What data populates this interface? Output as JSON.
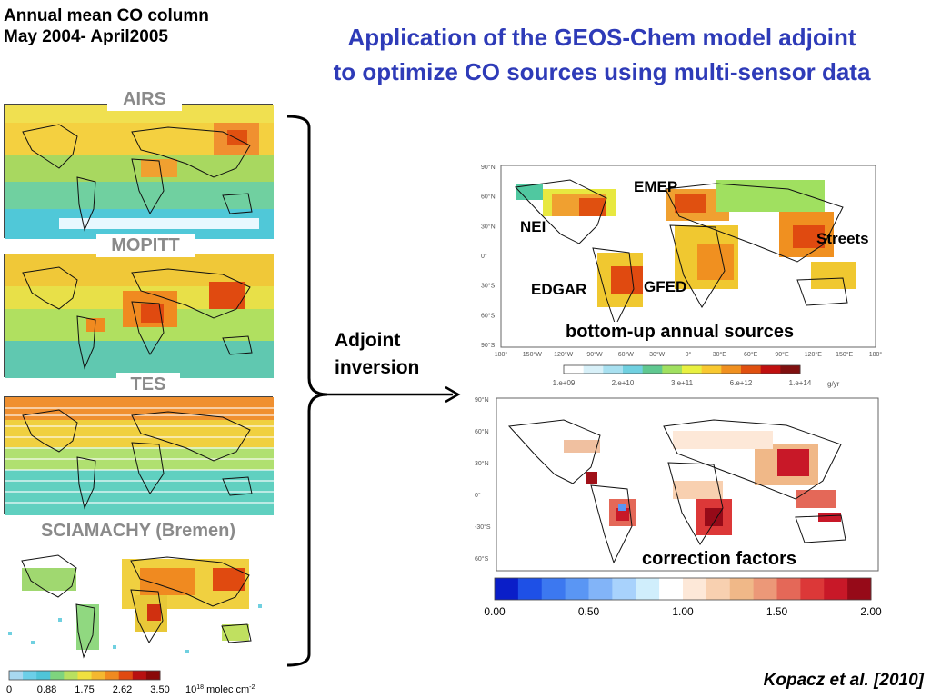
{
  "header": {
    "line1": "Annual mean CO column",
    "line2": "May 2004- April2005"
  },
  "title": {
    "line1": "Application of the GEOS-Chem model adjoint",
    "line2": "to optimize CO sources using multi-sensor data"
  },
  "panels": [
    {
      "label": "AIRS"
    },
    {
      "label": "MOPITT"
    },
    {
      "label": "TES"
    },
    {
      "label": "SCIAMACHY (Bremen)"
    }
  ],
  "left_colorbar": {
    "ticks": [
      "0",
      "0.88",
      "1.75",
      "2.62",
      "3.50"
    ],
    "unit_prefix": "10",
    "unit_exp": "18",
    "unit_suffix": " molec cm",
    "unit_exp2": "-2",
    "colors": [
      "#a8d8f0",
      "#6ccfe8",
      "#4fc4d8",
      "#7ed47e",
      "#b8e060",
      "#f0e040",
      "#f4b830",
      "#f08a20",
      "#e04a10",
      "#b81010",
      "#8a0808"
    ]
  },
  "arrow_label": {
    "line1": "Adjoint",
    "line2": "inversion"
  },
  "sources_map": {
    "labels": {
      "emep": "EMEP",
      "nei": "NEI",
      "streets": "Streets",
      "edgar": "EDGAR",
      "gfed": "GFED"
    },
    "caption": "bottom-up annual sources",
    "lat_ticks": [
      "90°N",
      "60°N",
      "30°N",
      "0°",
      "30°S",
      "60°S",
      "90°S"
    ],
    "lon_ticks": [
      "180°",
      "150°W",
      "120°W",
      "90°W",
      "60°W",
      "30°W",
      "0°",
      "30°E",
      "60°E",
      "90°E",
      "120°E",
      "150°E",
      "180°"
    ],
    "cbar_ticks": [
      "1.e+09",
      "2.e+10",
      "3.e+11",
      "6.e+12",
      "1.e+14"
    ],
    "cbar_unit": "g/yr",
    "cbar_colors": [
      "#ffffff",
      "#d8f0f8",
      "#a8e0f0",
      "#70d0e0",
      "#60c890",
      "#a0e060",
      "#e8f040",
      "#f8c830",
      "#f09020",
      "#e05010",
      "#c01010",
      "#801010"
    ]
  },
  "correction_map": {
    "caption": "correction factors",
    "lat_ticks": [
      "90°N",
      "60°N",
      "30°N",
      "0°",
      "-30°S",
      "60°S"
    ],
    "cbar_ticks": [
      "0.00",
      "0.50",
      "1.00",
      "1.50",
      "2.00"
    ],
    "cbar_colors": [
      "#0a1ec8",
      "#1e50e6",
      "#3c78f0",
      "#5a96f4",
      "#82b4f8",
      "#a8d2fc",
      "#d0eefc",
      "#ffffff",
      "#fde8d8",
      "#f8d0b0",
      "#f0b888",
      "#ec9878",
      "#e46858",
      "#dc3838",
      "#c81828",
      "#960a18"
    ]
  },
  "citation": "Kopacz et al. [2010]"
}
